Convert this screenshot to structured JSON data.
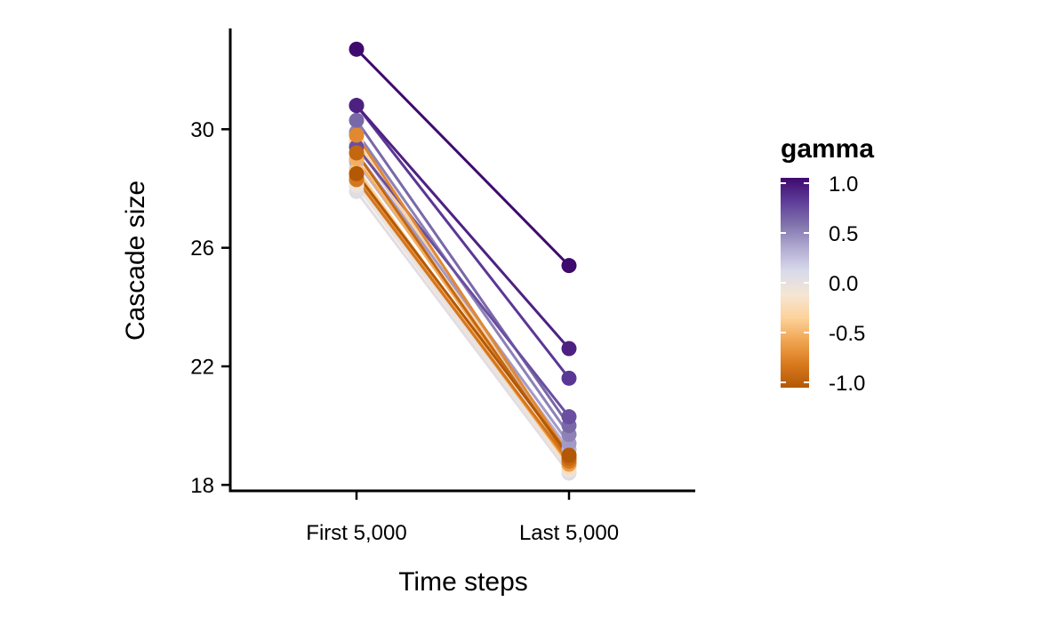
{
  "chart_data": {
    "type": "line",
    "title": "",
    "xlabel": "Time steps",
    "ylabel": "Cascade size",
    "categories": [
      "First 5,000",
      "Last 5,000"
    ],
    "ylim": [
      17.8,
      33.4
    ],
    "yticks": [
      18,
      22,
      26,
      30
    ],
    "ytick_labels": [
      "18",
      "22",
      "26",
      "30"
    ],
    "grid": false,
    "legend": {
      "title": "gamma",
      "position": "right",
      "type": "colorbar",
      "range": [
        -1.0,
        1.0
      ],
      "ticks": [
        1.0,
        0.5,
        0.0,
        -0.5,
        -1.0
      ],
      "tick_labels": [
        "1.0",
        "0.5",
        "0.0",
        "-0.5",
        "-1.0"
      ],
      "colors": [
        "#3f0a6e",
        "#5e3c99",
        "#8073ac",
        "#b2abd2",
        "#d8daeb",
        "#f5e6d3",
        "#fdd29b",
        "#f0a450",
        "#d9791e",
        "#b35806"
      ]
    },
    "series": [
      {
        "gamma": 1.0,
        "values": [
          32.7,
          25.4
        ]
      },
      {
        "gamma": 0.9,
        "values": [
          30.8,
          22.6
        ]
      },
      {
        "gamma": 0.8,
        "values": [
          30.8,
          21.6
        ]
      },
      {
        "gamma": 0.7,
        "values": [
          29.4,
          20.3
        ]
      },
      {
        "gamma": 0.6,
        "values": [
          30.3,
          20.0
        ]
      },
      {
        "gamma": 0.5,
        "values": [
          29.9,
          19.7
        ]
      },
      {
        "gamma": 0.4,
        "values": [
          29.2,
          19.4
        ]
      },
      {
        "gamma": 0.3,
        "values": [
          28.9,
          19.2
        ]
      },
      {
        "gamma": 0.2,
        "values": [
          29.5,
          19.0
        ]
      },
      {
        "gamma": 0.1,
        "values": [
          29.8,
          18.8
        ]
      },
      {
        "gamma": 0.0,
        "values": [
          28.2,
          18.6
        ]
      },
      {
        "gamma": -0.1,
        "values": [
          28.5,
          18.7
        ]
      },
      {
        "gamma": -0.2,
        "values": [
          28.7,
          18.6
        ]
      },
      {
        "gamma": -0.3,
        "values": [
          29.6,
          18.8
        ]
      },
      {
        "gamma": -0.4,
        "values": [
          28.6,
          18.7
        ]
      },
      {
        "gamma": -0.5,
        "values": [
          29.0,
          18.9
        ]
      },
      {
        "gamma": -0.6,
        "values": [
          28.4,
          18.7
        ]
      },
      {
        "gamma": -0.7,
        "values": [
          29.8,
          19.0
        ]
      },
      {
        "gamma": -0.8,
        "values": [
          28.3,
          18.8
        ]
      },
      {
        "gamma": -0.9,
        "values": [
          29.2,
          18.9
        ]
      },
      {
        "gamma": -1.0,
        "values": [
          28.5,
          19.0
        ]
      },
      {
        "gamma": 0.05,
        "values": [
          27.9,
          18.4
        ]
      },
      {
        "gamma": -0.05,
        "values": [
          28.1,
          18.5
        ]
      }
    ]
  }
}
